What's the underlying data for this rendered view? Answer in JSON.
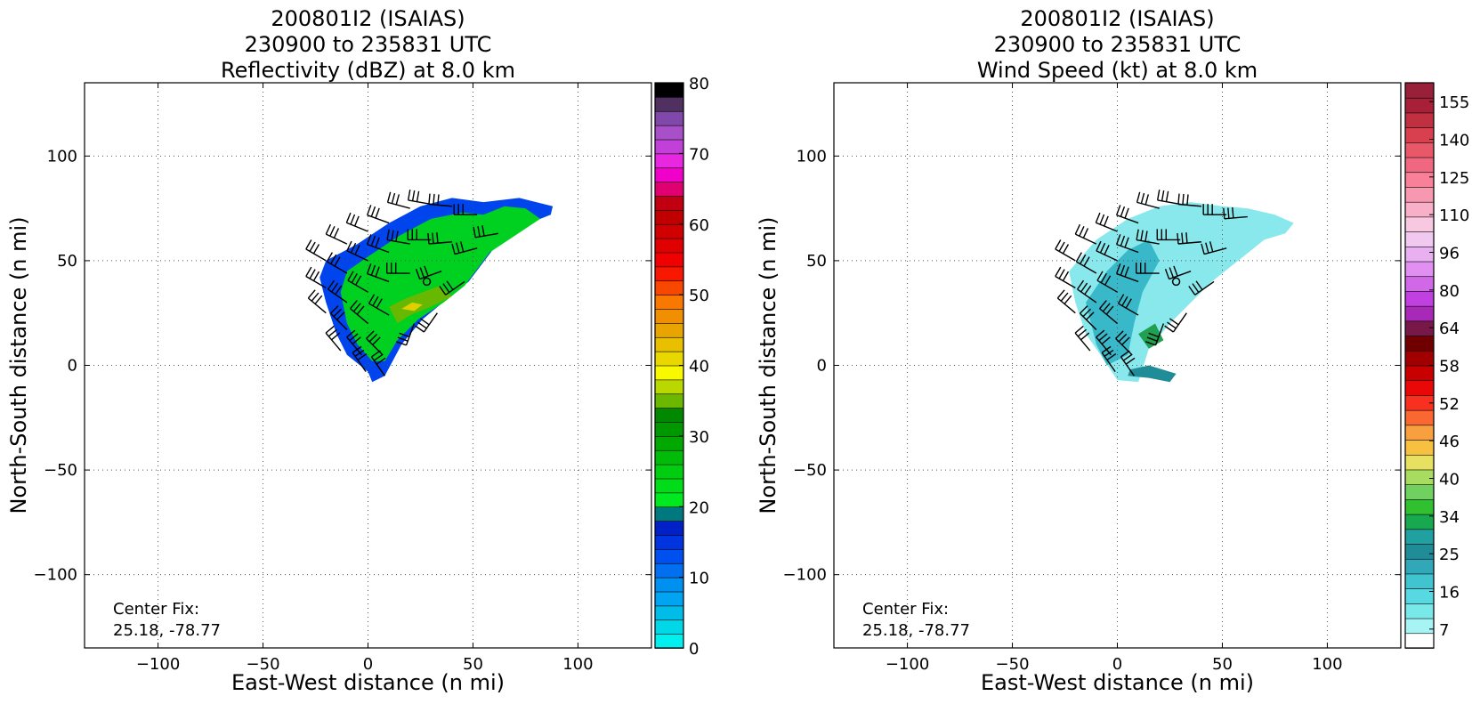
{
  "chart_data": [
    {
      "type": "heatmap",
      "title_lines": [
        "200801I2 (ISAIAS)",
        "230900 to 235831 UTC",
        "Reflectivity (dBZ) at 8.0 km"
      ],
      "xlabel": "East-West distance (n mi)",
      "ylabel": "North-South distance (n mi)",
      "xlim": [
        -135,
        135
      ],
      "ylim": [
        -135,
        135
      ],
      "xticks": [
        -100,
        -50,
        0,
        50,
        100
      ],
      "yticks": [
        -100,
        -50,
        0,
        50,
        100
      ],
      "x_tick_labels": [
        "−100",
        "−50",
        "0",
        "50",
        "100"
      ],
      "y_tick_labels": [
        "−100",
        "−50",
        "0",
        "50",
        "100"
      ],
      "grid": true,
      "annotation_lines": [
        "Center Fix:",
        "25.18, -78.77"
      ],
      "center_marker": [
        28,
        40
      ],
      "colorbar": {
        "min": 0,
        "max": 80,
        "tick_values": [
          0,
          10,
          20,
          30,
          40,
          50,
          60,
          70,
          80
        ],
        "tick_labels": [
          "0",
          "10",
          "20",
          "30",
          "40",
          "50",
          "60",
          "70",
          "80"
        ],
        "colors": [
          "#00f0f0",
          "#00d8e8",
          "#00bce8",
          "#00a4f0",
          "#0090f0",
          "#0070f0",
          "#0050f0",
          "#0034e0",
          "#0020c8",
          "#007880",
          "#00e820",
          "#00dc18",
          "#00cc10",
          "#00bc08",
          "#00a800",
          "#009800",
          "#008800",
          "#6cb800",
          "#b8d800",
          "#f8f800",
          "#e8d800",
          "#e8c000",
          "#e8a400",
          "#f09000",
          "#f87800",
          "#f84800",
          "#f81800",
          "#f00000",
          "#e00000",
          "#d00000",
          "#c00000",
          "#c00010",
          "#e00070",
          "#f000c8",
          "#e828e0",
          "#c040d8",
          "#a850c8",
          "#8048a8",
          "#503060",
          "#000000"
        ]
      },
      "contour_levels": [
        {
          "color": "#0044ee",
          "poly": [
            [
              -20,
              50
            ],
            [
              -5,
              58
            ],
            [
              10,
              68
            ],
            [
              25,
              76
            ],
            [
              40,
              80
            ],
            [
              55,
              78
            ],
            [
              72,
              80
            ],
            [
              88,
              76
            ],
            [
              87,
              72
            ],
            [
              72,
              66
            ],
            [
              60,
              56
            ],
            [
              48,
              40
            ],
            [
              38,
              32
            ],
            [
              26,
              22
            ],
            [
              16,
              10
            ],
            [
              8,
              -5
            ],
            [
              2,
              -8
            ],
            [
              0,
              -3
            ],
            [
              -10,
              5
            ],
            [
              -15,
              15
            ],
            [
              -20,
              30
            ],
            [
              -23,
              42
            ]
          ]
        },
        {
          "color": "#00d020",
          "poly": [
            [
              -10,
              45
            ],
            [
              0,
              52
            ],
            [
              15,
              62
            ],
            [
              30,
              70
            ],
            [
              45,
              73
            ],
            [
              55,
              72
            ],
            [
              65,
              76
            ],
            [
              75,
              75
            ],
            [
              82,
              70
            ],
            [
              70,
              62
            ],
            [
              58,
              54
            ],
            [
              46,
              38
            ],
            [
              36,
              30
            ],
            [
              24,
              22
            ],
            [
              14,
              12
            ],
            [
              8,
              2
            ],
            [
              2,
              2
            ],
            [
              -5,
              10
            ],
            [
              -10,
              20
            ],
            [
              -13,
              35
            ]
          ]
        },
        {
          "color": "#66b800",
          "poly": [
            [
              10,
              28
            ],
            [
              18,
              32
            ],
            [
              26,
              35
            ],
            [
              34,
              38
            ],
            [
              40,
              33
            ],
            [
              30,
              28
            ],
            [
              20,
              24
            ],
            [
              14,
              20
            ]
          ]
        },
        {
          "color": "#e0d000",
          "poly": [
            [
              16,
              27
            ],
            [
              21,
              30
            ],
            [
              26,
              29
            ],
            [
              22,
              26
            ]
          ]
        }
      ],
      "barbs": [
        {
          "x": -20,
          "y": 50,
          "dir": 300
        },
        {
          "x": -10,
          "y": 58,
          "dir": 295
        },
        {
          "x": 0,
          "y": 64,
          "dir": 292
        },
        {
          "x": 10,
          "y": 68,
          "dir": 290
        },
        {
          "x": 20,
          "y": 75,
          "dir": 285
        },
        {
          "x": 30,
          "y": 77,
          "dir": 280
        },
        {
          "x": 40,
          "y": 76,
          "dir": 275
        },
        {
          "x": 52,
          "y": 72,
          "dir": 270
        },
        {
          "x": -20,
          "y": 37,
          "dir": 300
        },
        {
          "x": -10,
          "y": 44,
          "dir": 300
        },
        {
          "x": 0,
          "y": 50,
          "dir": 295
        },
        {
          "x": 10,
          "y": 54,
          "dir": 290
        },
        {
          "x": 20,
          "y": 58,
          "dir": 280
        },
        {
          "x": 30,
          "y": 60,
          "dir": 270
        },
        {
          "x": 40,
          "y": 59,
          "dir": 265
        },
        {
          "x": 52,
          "y": 56,
          "dir": 255
        },
        {
          "x": 62,
          "y": 63,
          "dir": 260
        },
        {
          "x": -20,
          "y": 25,
          "dir": 310
        },
        {
          "x": -10,
          "y": 30,
          "dir": 305
        },
        {
          "x": 0,
          "y": 35,
          "dir": 300
        },
        {
          "x": 10,
          "y": 40,
          "dir": 290
        },
        {
          "x": 20,
          "y": 44,
          "dir": 270
        },
        {
          "x": 35,
          "y": 45,
          "dir": 250
        },
        {
          "x": 46,
          "y": 40,
          "dir": 235
        },
        {
          "x": -10,
          "y": 17,
          "dir": 315
        },
        {
          "x": 0,
          "y": 20,
          "dir": 310
        },
        {
          "x": 10,
          "y": 24,
          "dir": 300
        },
        {
          "x": 22,
          "y": 20,
          "dir": 200
        },
        {
          "x": 33,
          "y": 25,
          "dir": 215
        },
        {
          "x": -13,
          "y": 7,
          "dir": 320
        },
        {
          "x": -3,
          "y": 5,
          "dir": 320
        },
        {
          "x": 7,
          "y": 5,
          "dir": 315
        },
        {
          "x": -1,
          "y": -3,
          "dir": 325
        },
        {
          "x": 8,
          "y": -5,
          "dir": 325
        }
      ]
    },
    {
      "type": "heatmap",
      "title_lines": [
        "200801I2 (ISAIAS)",
        "230900 to 235831 UTC",
        "Wind Speed (kt) at 8.0 km"
      ],
      "xlabel": "East-West distance (n mi)",
      "ylabel": "North-South distance (n mi)",
      "xlim": [
        -135,
        135
      ],
      "ylim": [
        -135,
        135
      ],
      "xticks": [
        -100,
        -50,
        0,
        50,
        100
      ],
      "yticks": [
        -100,
        -50,
        0,
        50,
        100
      ],
      "x_tick_labels": [
        "−100",
        "−50",
        "0",
        "50",
        "100"
      ],
      "y_tick_labels": [
        "−100",
        "−50",
        "0",
        "50",
        "100"
      ],
      "grid": true,
      "annotation_lines": [
        "Center Fix:",
        "25.18, -78.77"
      ],
      "center_marker": [
        28,
        40
      ],
      "colorbar": {
        "min": 4,
        "max": 160,
        "tick_values": [
          7,
          16,
          25,
          34,
          40,
          46,
          52,
          58,
          64,
          80,
          96,
          110,
          125,
          140,
          155
        ],
        "tick_labels": [
          "7",
          "16",
          "25",
          "34",
          "40",
          "46",
          "52",
          "58",
          "64",
          "80",
          "96",
          "110",
          "125",
          "140",
          "155"
        ],
        "colors": [
          "#ffffff",
          "#a8f4f4",
          "#78e8e8",
          "#58d8e0",
          "#40c4d0",
          "#30a8b8",
          "#208c98",
          "#20a0a0",
          "#18a850",
          "#30c030",
          "#70d060",
          "#a8dc60",
          "#e8e060",
          "#f8c040",
          "#f8a040",
          "#f86830",
          "#f83020",
          "#e80808",
          "#c80000",
          "#a00000",
          "#700000",
          "#781848",
          "#a828b8",
          "#c040e0",
          "#d068e8",
          "#e090f0",
          "#e8b0f0",
          "#f0c8f0",
          "#f8c8e0",
          "#f8b0c8",
          "#f898b0",
          "#f88098",
          "#f06880",
          "#e85868",
          "#d84050",
          "#c03040",
          "#a82038",
          "#982038"
        ]
      },
      "contour_levels": [
        {
          "color": "#88e8ec",
          "poly": [
            [
              -23,
              45
            ],
            [
              -10,
              60
            ],
            [
              5,
              70
            ],
            [
              20,
              76
            ],
            [
              35,
              78
            ],
            [
              50,
              76
            ],
            [
              62,
              75
            ],
            [
              75,
              72
            ],
            [
              84,
              68
            ],
            [
              80,
              63
            ],
            [
              70,
              60
            ],
            [
              60,
              52
            ],
            [
              45,
              40
            ],
            [
              35,
              30
            ],
            [
              25,
              20
            ],
            [
              15,
              8
            ],
            [
              10,
              -8
            ],
            [
              0,
              -7
            ],
            [
              -8,
              5
            ],
            [
              -15,
              15
            ],
            [
              -20,
              30
            ]
          ]
        },
        {
          "color": "#38b8c8",
          "poly": [
            [
              -15,
              30
            ],
            [
              -5,
              45
            ],
            [
              5,
              55
            ],
            [
              15,
              60
            ],
            [
              20,
              50
            ],
            [
              12,
              35
            ],
            [
              8,
              20
            ],
            [
              5,
              5
            ],
            [
              -5,
              0
            ],
            [
              -10,
              10
            ]
          ]
        },
        {
          "color": "#208c98",
          "poly": [
            [
              5,
              -5
            ],
            [
              15,
              -6
            ],
            [
              25,
              -8
            ],
            [
              28,
              -4
            ],
            [
              15,
              0
            ],
            [
              6,
              -2
            ]
          ]
        },
        {
          "color": "#20a050",
          "poly": [
            [
              10,
              15
            ],
            [
              18,
              20
            ],
            [
              22,
              12
            ],
            [
              15,
              8
            ]
          ]
        }
      ],
      "barbs": [
        {
          "x": -20,
          "y": 50,
          "dir": 300
        },
        {
          "x": -10,
          "y": 58,
          "dir": 295
        },
        {
          "x": 0,
          "y": 64,
          "dir": 292
        },
        {
          "x": 10,
          "y": 68,
          "dir": 290
        },
        {
          "x": 20,
          "y": 75,
          "dir": 285
        },
        {
          "x": 30,
          "y": 77,
          "dir": 280
        },
        {
          "x": 40,
          "y": 76,
          "dir": 275
        },
        {
          "x": 52,
          "y": 72,
          "dir": 270
        },
        {
          "x": 62,
          "y": 71,
          "dir": 265
        },
        {
          "x": -20,
          "y": 37,
          "dir": 300
        },
        {
          "x": -10,
          "y": 44,
          "dir": 300
        },
        {
          "x": 0,
          "y": 50,
          "dir": 295
        },
        {
          "x": 10,
          "y": 54,
          "dir": 290
        },
        {
          "x": 20,
          "y": 58,
          "dir": 280
        },
        {
          "x": 30,
          "y": 60,
          "dir": 270
        },
        {
          "x": 40,
          "y": 59,
          "dir": 265
        },
        {
          "x": 52,
          "y": 56,
          "dir": 255
        },
        {
          "x": -20,
          "y": 25,
          "dir": 310
        },
        {
          "x": -10,
          "y": 30,
          "dir": 305
        },
        {
          "x": 0,
          "y": 35,
          "dir": 300
        },
        {
          "x": 10,
          "y": 40,
          "dir": 290
        },
        {
          "x": 20,
          "y": 44,
          "dir": 270
        },
        {
          "x": 35,
          "y": 45,
          "dir": 250
        },
        {
          "x": 46,
          "y": 40,
          "dir": 235
        },
        {
          "x": -10,
          "y": 17,
          "dir": 315
        },
        {
          "x": 0,
          "y": 20,
          "dir": 310
        },
        {
          "x": 10,
          "y": 24,
          "dir": 300
        },
        {
          "x": 22,
          "y": 20,
          "dir": 200
        },
        {
          "x": 33,
          "y": 25,
          "dir": 215
        },
        {
          "x": -13,
          "y": 7,
          "dir": 320
        },
        {
          "x": -3,
          "y": 5,
          "dir": 320
        },
        {
          "x": 7,
          "y": 5,
          "dir": 315
        },
        {
          "x": -1,
          "y": -3,
          "dir": 325
        },
        {
          "x": 8,
          "y": -5,
          "dir": 325
        }
      ]
    }
  ]
}
